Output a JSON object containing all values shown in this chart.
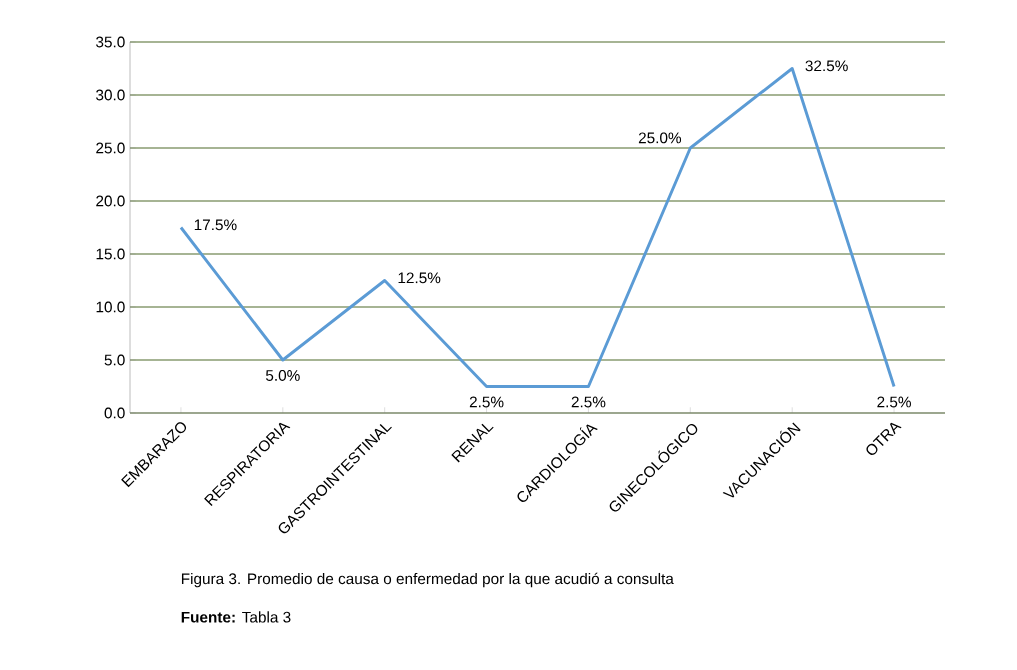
{
  "chart_data": {
    "type": "line",
    "categories": [
      "EMBARAZO",
      "RESPIRATORIA",
      "GASTROINTESTINAL",
      "RENAL",
      "CARDIOLOGÍA",
      "GINECOLÓGICO",
      "VACUNACIÓN",
      "OTRA"
    ],
    "series": [
      {
        "color": "#5b9bd5",
        "values": [
          17.5,
          5.0,
          12.5,
          2.5,
          2.5,
          25.0,
          32.5,
          2.5
        ],
        "value_labels": [
          "17.5%",
          "5.0%",
          "12.5%",
          "2.5%",
          "2.5%",
          "25.0%",
          "32.5%",
          "2.5%"
        ]
      }
    ],
    "ylim": [
      0,
      35
    ],
    "yticks": [
      {
        "value": 0,
        "label": "0.0"
      },
      {
        "value": 5,
        "label": "5.0"
      },
      {
        "value": 10,
        "label": "10.0"
      },
      {
        "value": 15,
        "label": "15.0"
      },
      {
        "value": 20,
        "label": "20.0"
      },
      {
        "value": 25,
        "label": "25.0"
      },
      {
        "value": 30,
        "label": "30.0"
      },
      {
        "value": 35,
        "label": "35.0"
      }
    ],
    "grid": "y",
    "marker": "none",
    "line_style": "solid",
    "annotations": [
      "Figura 3. Promedio de causa o enfermedad por la que acudió a consulta",
      "**Fuente:** Tabla 3"
    ]
  }
}
